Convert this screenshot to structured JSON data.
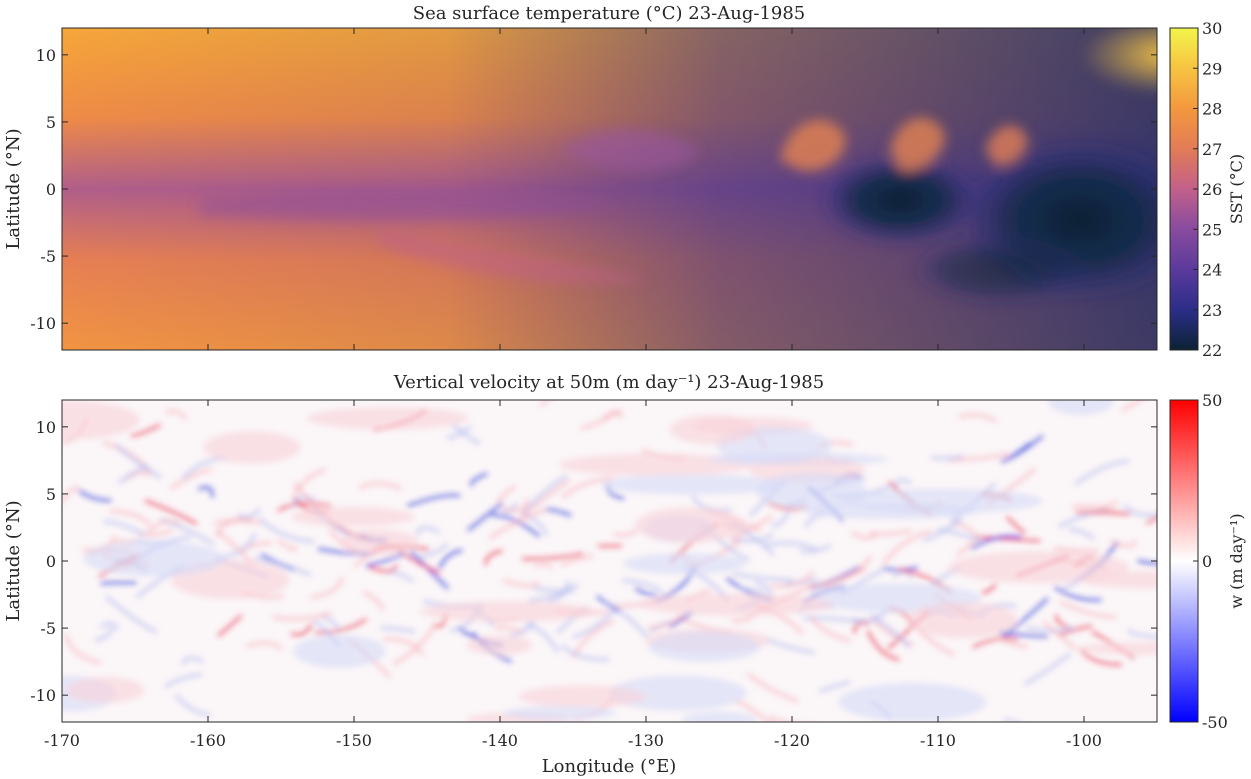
{
  "chart_data": [
    {
      "type": "heatmap",
      "title": "Sea surface temperature (°C) 23-Aug-1985",
      "xlabel": "",
      "ylabel": "Latitude (°N)",
      "xlim": [
        -170,
        -95
      ],
      "ylim": [
        -12,
        12
      ],
      "x_ticks": [
        "-170",
        "-160",
        "-150",
        "-140",
        "-130",
        "-120",
        "-110",
        "-100"
      ],
      "x_tick_values": [
        -170,
        -160,
        -150,
        -140,
        -130,
        -120,
        -110,
        -100
      ],
      "x_ticks_shown": false,
      "y_ticks": [
        "10",
        "5",
        "0",
        "-5",
        "-10"
      ],
      "y_tick_values": [
        10,
        5,
        0,
        -5,
        -10
      ],
      "colorbar": {
        "label": "SST (°C)",
        "min": 22,
        "max": 30,
        "ticks": [
          "30",
          "29",
          "28",
          "27",
          "26",
          "25",
          "24",
          "23",
          "22"
        ],
        "tick_values": [
          30,
          29,
          28,
          27,
          26,
          25,
          24,
          23,
          22
        ],
        "colormap": [
          "#0c2233",
          "#2a2d86",
          "#5b3a9c",
          "#8a4c9e",
          "#c2608a",
          "#e37d55",
          "#f3983e",
          "#f7c542",
          "#f2f54a"
        ]
      },
      "field_description": "Warm (~28°C) water north and south; cold tongue (~22-23°C) along the equator in the east with tropical instability wave cusps near 5°N."
    },
    {
      "type": "heatmap",
      "title": "Vertical velocity at 50m (m day⁻¹) 23-Aug-1985",
      "xlabel": "Longitude (°E)",
      "ylabel": "Latitude (°N)",
      "xlim": [
        -170,
        -95
      ],
      "ylim": [
        -12,
        12
      ],
      "x_ticks": [
        "-170",
        "-160",
        "-150",
        "-140",
        "-130",
        "-120",
        "-110",
        "-100"
      ],
      "x_tick_values": [
        -170,
        -160,
        -150,
        -140,
        -130,
        -120,
        -110,
        -100
      ],
      "y_ticks": [
        "10",
        "5",
        "0",
        "-5",
        "-10"
      ],
      "y_tick_values": [
        10,
        5,
        0,
        -5,
        -10
      ],
      "colorbar": {
        "label": "w (m day⁻¹)",
        "min": -50,
        "max": 50,
        "ticks": [
          "50",
          "0",
          "-50"
        ],
        "tick_values": [
          50,
          0,
          -50
        ],
        "colormap": [
          "#0000ff",
          "#ffffff",
          "#ff0000"
        ]
      },
      "field_description": "Mostly weak values near 0 with filaments of strong upwelling/downwelling between about -5°N and 7°N."
    }
  ],
  "colors": {
    "axis": "#262626",
    "background": "#ffffff"
  }
}
